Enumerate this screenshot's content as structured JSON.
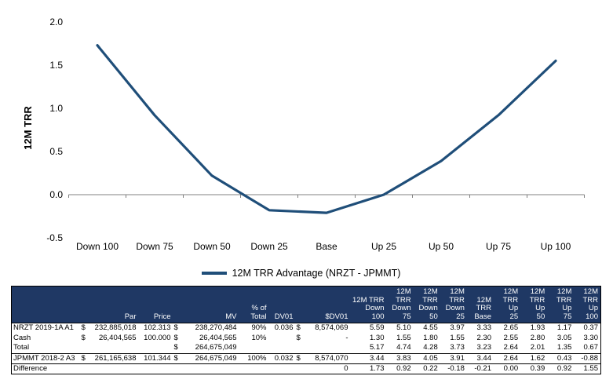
{
  "chart_data": {
    "type": "line",
    "title": "",
    "xlabel": "",
    "ylabel": "12M TRR",
    "categories": [
      "Down 100",
      "Down 75",
      "Down 50",
      "Down 25",
      "Base",
      "Up 25",
      "Up 50",
      "Up 75",
      "Up 100"
    ],
    "series": [
      {
        "name": "12M TRR Advantage (NRZT - JPMMT)",
        "values": [
          1.73,
          0.92,
          0.22,
          -0.18,
          -0.21,
          0.0,
          0.39,
          0.92,
          1.55
        ]
      }
    ],
    "ylim": [
      -0.5,
      2.0
    ],
    "yticks": [
      2.0,
      1.5,
      1.0,
      0.5,
      0.0,
      -0.5
    ],
    "grid": false,
    "legend_position": "bottom",
    "line_color": "#1F4E79",
    "axis_color": "#808080"
  },
  "table": {
    "header_bg": "#1F3864",
    "header_fg": "#FFFFFF",
    "headers": [
      "",
      "Par",
      "Price",
      "MV",
      "% of\nTotal",
      "DV01",
      "$DV01",
      "12M TRR\nDown 100",
      "12M\nTRR\nDown 75",
      "12M\nTRR\nDown 50",
      "12M\nTRR\nDown 25",
      "12M\nTRR\nBase",
      "12M\nTRR Up\n25",
      "12M\nTRR Up\n50",
      "12M\nTRR Up\n75",
      "12M\nTRR Up\n100"
    ],
    "rows": [
      {
        "name": "NRZT 2019-1A A1",
        "emphasis": false,
        "cells": [
          "$ 232,885,018",
          "102.313",
          "$ 238,270,484",
          "90%",
          "0.036",
          "$ 8,574,069",
          "5.59",
          "5.10",
          "4.55",
          "3.97",
          "3.33",
          "2.65",
          "1.93",
          "1.17",
          "0.37"
        ]
      },
      {
        "name": "Cash",
        "emphasis": false,
        "cells": [
          "$ 26,404,565",
          "100.000",
          "$ 26,404,565",
          "10%",
          "",
          "$ -",
          "1.30",
          "1.55",
          "1.80",
          "1.55",
          "2.30",
          "2.55",
          "2.80",
          "3.05",
          "3.30"
        ]
      },
      {
        "name": "Total",
        "emphasis": false,
        "cells": [
          "",
          "",
          "$ 264,675,049",
          "",
          "",
          "",
          "5.17",
          "4.74",
          "4.28",
          "3.73",
          "3.23",
          "2.64",
          "2.01",
          "1.35",
          "0.67"
        ]
      },
      {
        "name": "JPMMT 2018-2 A3",
        "emphasis": true,
        "cells": [
          "$ 261,165,638",
          "101.344",
          "$ 264,675,049",
          "100%",
          "0.032",
          "$ 8,574,070",
          "3.44",
          "3.83",
          "4.05",
          "3.91",
          "3.44",
          "2.64",
          "1.62",
          "0.43",
          "-0.88"
        ]
      },
      {
        "name": "Difference",
        "emphasis": false,
        "cells": [
          "",
          "",
          "",
          "",
          "",
          "0",
          "1.73",
          "0.92",
          "0.22",
          "-0.18",
          "-0.21",
          "0.00",
          "0.39",
          "0.92",
          "1.55"
        ]
      }
    ]
  }
}
